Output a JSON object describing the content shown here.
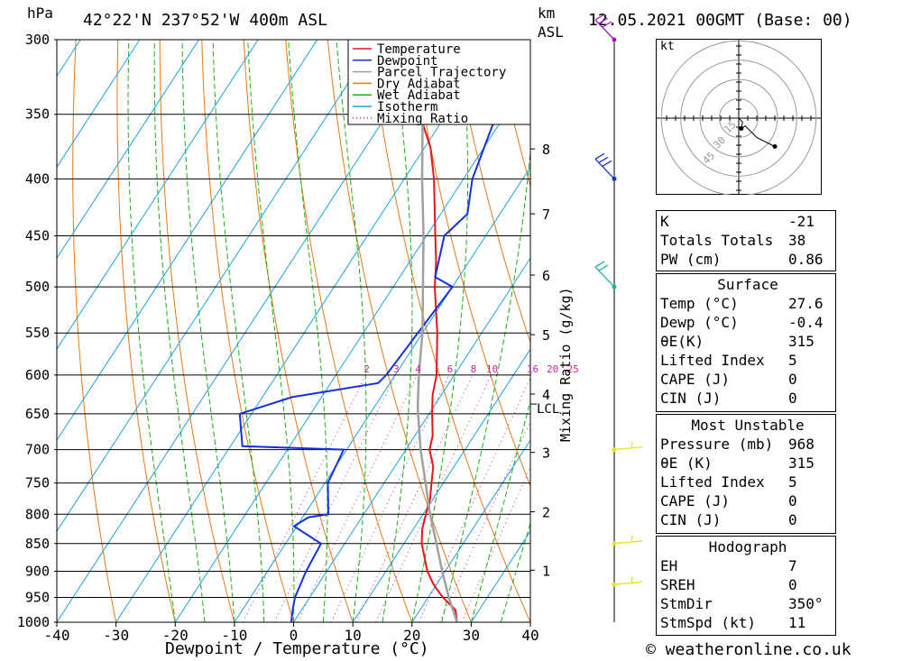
{
  "header": {
    "pressure_unit": "hPa",
    "location": "42°22'N  237°52'W  400m  ASL",
    "km_unit": "km",
    "km_sub": "ASL",
    "datetime": "12.05.2021  00GMT  (Base: 00)"
  },
  "footer": {
    "copyright": "© weatheronline.co.uk"
  },
  "chart_data": {
    "type": "line",
    "subtype": "skew-T log-P diagram",
    "xlabel": "Dewpoint / Temperature (°C)",
    "ylabel": "hPa",
    "right_label": "Mixing Ratio (g/kg)",
    "xlim": [
      -40,
      40
    ],
    "ylim": [
      1000,
      300
    ],
    "x_ticks": [
      "-40",
      "-30",
      "-20",
      "-10",
      "0",
      "10",
      "20",
      "30",
      "40"
    ],
    "pressure_levels": [
      300,
      350,
      400,
      450,
      500,
      550,
      600,
      650,
      700,
      750,
      800,
      850,
      900,
      950,
      1000
    ],
    "km_ticks": [
      {
        "label": "1",
        "p": 898
      },
      {
        "label": "2",
        "p": 796
      },
      {
        "label": "3",
        "p": 704
      },
      {
        "label": "4",
        "p": 624
      },
      {
        "label": "5",
        "p": 552
      },
      {
        "label": "6",
        "p": 488
      },
      {
        "label": "7",
        "p": 430
      },
      {
        "label": "8",
        "p": 376
      }
    ],
    "lcl": {
      "label": "LCL",
      "p": 643
    },
    "mixing_ratio_labels": [
      "2",
      "3",
      "4",
      "6",
      "8",
      "10",
      "16",
      "20",
      "25"
    ],
    "legend": [
      "Temperature",
      "Dewpoint",
      "Parcel Trajectory",
      "Dry Adiabat",
      "Wet Adiabat",
      "Isotherm",
      "Mixing Ratio"
    ],
    "legend_position": "top-right",
    "colors": {
      "temperature": "#e8141c",
      "dewpoint": "#1432dc",
      "parcel": "#a0a0a0",
      "dry_adiabat": "#e87814",
      "wet_adiabat": "#14b414",
      "isotherm": "#1ea0e6",
      "mixing_ratio": "#d21e96"
    },
    "series": [
      {
        "name": "Temperature",
        "points": [
          [
            1000,
            27.6
          ],
          [
            975,
            26
          ],
          [
            950,
            22.5
          ],
          [
            925,
            19.5
          ],
          [
            900,
            17
          ],
          [
            850,
            13
          ],
          [
            825,
            11.5
          ],
          [
            800,
            10.5
          ],
          [
            775,
            9.5
          ],
          [
            750,
            8
          ],
          [
            725,
            6.5
          ],
          [
            700,
            4
          ],
          [
            680,
            3
          ],
          [
            650,
            0.5
          ],
          [
            625,
            -1.5
          ],
          [
            600,
            -3
          ],
          [
            550,
            -7.5
          ],
          [
            500,
            -13
          ],
          [
            475,
            -15.5
          ],
          [
            450,
            -18.5
          ],
          [
            400,
            -25
          ],
          [
            375,
            -29
          ],
          [
            350,
            -34.5
          ],
          [
            325,
            -39
          ],
          [
            300,
            -43
          ]
        ]
      },
      {
        "name": "Dewpoint",
        "points": [
          [
            1000,
            -0.4
          ],
          [
            975,
            -1.5
          ],
          [
            950,
            -2.5
          ],
          [
            900,
            -3.5
          ],
          [
            850,
            -4
          ],
          [
            820,
            -10.5
          ],
          [
            805,
            -9
          ],
          [
            800,
            -6
          ],
          [
            750,
            -9.5
          ],
          [
            700,
            -10.5
          ],
          [
            695,
            -28
          ],
          [
            650,
            -32
          ],
          [
            628,
            -25
          ],
          [
            610,
            -12
          ],
          [
            600,
            -11.5
          ],
          [
            500,
            -10
          ],
          [
            490,
            -14
          ],
          [
            450,
            -17
          ],
          [
            430,
            -15.5
          ],
          [
            400,
            -18.5
          ],
          [
            350,
            -21.5
          ],
          [
            325,
            -26
          ],
          [
            310,
            -25
          ],
          [
            300,
            -27.5
          ]
        ]
      },
      {
        "name": "Parcel Trajectory",
        "points": [
          [
            1000,
            27.6
          ],
          [
            950,
            23.5
          ],
          [
            900,
            19.5
          ],
          [
            850,
            15.5
          ],
          [
            800,
            11.2
          ],
          [
            750,
            7
          ],
          [
            700,
            2.5
          ],
          [
            643,
            -2.5
          ],
          [
            600,
            -6
          ],
          [
            550,
            -10
          ],
          [
            500,
            -15
          ],
          [
            450,
            -20.5
          ],
          [
            400,
            -27
          ],
          [
            350,
            -34
          ],
          [
            300,
            -42.5
          ]
        ]
      }
    ],
    "wind_barbs": [
      {
        "p": 300,
        "color": "#9b1eb4"
      },
      {
        "p": 400,
        "color": "#1432dc"
      },
      {
        "p": 500,
        "color": "#14b4a0"
      },
      {
        "p": 700,
        "color": "#e6e614"
      },
      {
        "p": 850,
        "color": "#e6e614"
      },
      {
        "p": 925,
        "color": "#e6e614"
      }
    ]
  },
  "hodograph": {
    "unit_label": "kt",
    "ring_labels": [
      "15",
      "30",
      "45"
    ],
    "points": [
      [
        0,
        0
      ],
      [
        3,
        -3
      ],
      [
        2,
        -8
      ],
      [
        5,
        -6
      ],
      [
        14,
        -15
      ],
      [
        28,
        -22
      ]
    ]
  },
  "indices": {
    "k_label": "K",
    "k_value": "-21",
    "tt_label": "Totals Totals",
    "tt_value": "38",
    "pw_label": "PW (cm)",
    "pw_value": "0.86"
  },
  "surface": {
    "title": "Surface",
    "rows": [
      {
        "label": "Temp (°C)",
        "value": "27.6"
      },
      {
        "label": "Dewp (°C)",
        "value": "-0.4"
      },
      {
        "label": "θE(K)",
        "value": "315"
      },
      {
        "label": "Lifted Index",
        "value": "5"
      },
      {
        "label": "CAPE (J)",
        "value": "0"
      },
      {
        "label": "CIN (J)",
        "value": "0"
      }
    ]
  },
  "most_unstable": {
    "title": "Most Unstable",
    "rows": [
      {
        "label": "Pressure (mb)",
        "value": "968"
      },
      {
        "label": "θE (K)",
        "value": "315"
      },
      {
        "label": "Lifted Index",
        "value": "5"
      },
      {
        "label": "CAPE (J)",
        "value": "0"
      },
      {
        "label": "CIN (J)",
        "value": "0"
      }
    ]
  },
  "hodograph_stats": {
    "title": "Hodograph",
    "rows": [
      {
        "label": "EH",
        "value": "7"
      },
      {
        "label": "SREH",
        "value": "0"
      },
      {
        "label": "StmDir",
        "value": "350°"
      },
      {
        "label": "StmSpd (kt)",
        "value": "11"
      }
    ]
  }
}
